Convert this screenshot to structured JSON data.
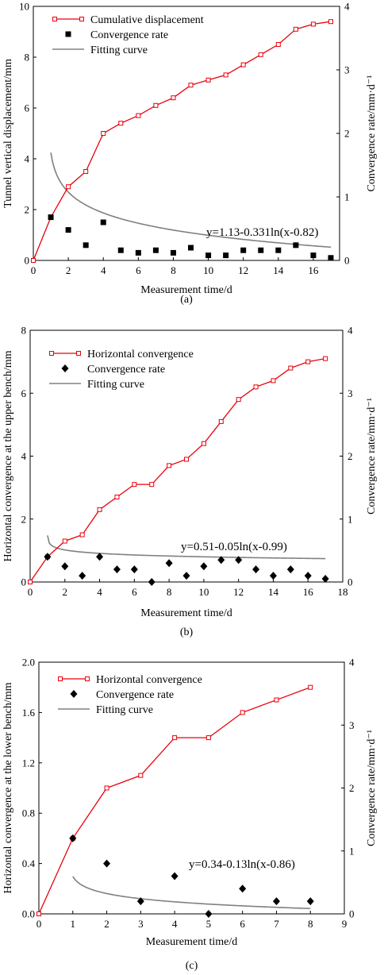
{
  "chart_data": [
    {
      "panel_label": "(a)",
      "type": "line",
      "xlabel": "Measurement time/d",
      "ylabel_left": "Tunnel vertical displacement/mm",
      "ylabel_right": "Convergence rate/mm·d⁻¹",
      "xlim": [
        0,
        17.5
      ],
      "xticks": [
        0,
        2,
        4,
        6,
        8,
        10,
        12,
        14,
        16
      ],
      "ylim_left": [
        0,
        10
      ],
      "yticks_left": [
        0,
        2,
        4,
        6,
        8,
        10
      ],
      "ylim_right": [
        0,
        4
      ],
      "yticks_right": [
        0,
        1,
        2,
        3,
        4
      ],
      "equation": "y=1.13-0.331ln(x-0.82)",
      "fit": {
        "a": 1.13,
        "b": 0.331,
        "c": 0.82,
        "x_start": 1.0,
        "x_end": 17
      },
      "legend_position": "top-left",
      "series": [
        {
          "name": "Cumulative displacement",
          "kind": "line-open-square",
          "color": "#e8000b",
          "axis": "left",
          "x": [
            0,
            1,
            2,
            3,
            4,
            5,
            6,
            7,
            8,
            9,
            10,
            11,
            12,
            13,
            14,
            15,
            16,
            17
          ],
          "y": [
            0,
            1.7,
            2.9,
            3.5,
            5.0,
            5.4,
            5.7,
            6.1,
            6.4,
            6.9,
            7.1,
            7.3,
            7.7,
            8.1,
            8.5,
            9.1,
            9.3,
            9.4
          ]
        },
        {
          "name": "Convergence rate",
          "kind": "scatter-square",
          "color": "#000000",
          "axis": "right",
          "x": [
            1,
            2,
            3,
            4,
            5,
            6,
            7,
            8,
            9,
            10,
            11,
            12,
            13,
            14,
            15,
            16,
            17
          ],
          "y": [
            0.68,
            0.48,
            0.24,
            0.6,
            0.16,
            0.12,
            0.16,
            0.12,
            0.2,
            0.08,
            0.08,
            0.16,
            0.16,
            0.16,
            0.24,
            0.08,
            0.04
          ]
        },
        {
          "name": "Fitting curve",
          "kind": "fit-line",
          "color": "#808080",
          "axis": "right"
        }
      ]
    },
    {
      "panel_label": "(b)",
      "type": "line",
      "xlabel": "Measurement time/d",
      "ylabel_left": "Horizontal convergence at the upper bench/mm",
      "ylabel_right": "Convergence rate/mm·d⁻¹",
      "xlim": [
        0,
        18
      ],
      "xticks": [
        0,
        2,
        4,
        6,
        8,
        10,
        12,
        14,
        16,
        18
      ],
      "ylim_left": [
        0,
        8
      ],
      "yticks_left": [
        0,
        2,
        4,
        6,
        8
      ],
      "ylim_right": [
        0,
        4
      ],
      "yticks_right": [
        0,
        1,
        2,
        3,
        4
      ],
      "equation": "y=0.51-0.05ln(x-0.99)",
      "fit": {
        "a": 0.51,
        "b": 0.05,
        "c": 0.99,
        "x_start": 1.0,
        "x_end": 17
      },
      "legend_position": "top-left",
      "series": [
        {
          "name": "Horizontal convergence",
          "kind": "line-open-square",
          "color": "#e8000b",
          "axis": "left",
          "x": [
            0,
            1,
            2,
            3,
            4,
            5,
            6,
            7,
            8,
            9,
            10,
            11,
            12,
            13,
            14,
            15,
            16,
            17
          ],
          "y": [
            0,
            0.8,
            1.3,
            1.5,
            2.3,
            2.7,
            3.1,
            3.1,
            3.7,
            3.9,
            4.4,
            5.1,
            5.8,
            6.2,
            6.4,
            6.8,
            7.0,
            7.1
          ]
        },
        {
          "name": "Convergence rate",
          "kind": "scatter-diamond",
          "color": "#000000",
          "axis": "right",
          "x": [
            1,
            2,
            3,
            4,
            5,
            6,
            7,
            8,
            9,
            10,
            11,
            12,
            13,
            14,
            15,
            16,
            17
          ],
          "y": [
            0.4,
            0.25,
            0.1,
            0.4,
            0.2,
            0.2,
            0.0,
            0.3,
            0.1,
            0.25,
            0.35,
            0.35,
            0.2,
            0.1,
            0.2,
            0.1,
            0.05
          ]
        },
        {
          "name": "Fitting curve",
          "kind": "fit-line",
          "color": "#808080",
          "axis": "right"
        }
      ]
    },
    {
      "panel_label": "(c)",
      "type": "line",
      "xlabel": "Measurement time/d",
      "ylabel_left": "Horizontal convergence at the lower bench/mm",
      "ylabel_right": "Convergence rate/mm·d⁻¹",
      "xlim": [
        0,
        9
      ],
      "xticks": [
        0,
        1,
        2,
        3,
        4,
        5,
        6,
        7,
        8,
        9
      ],
      "ylim_left": [
        0,
        2.0
      ],
      "yticks_left": [
        "0.0",
        "0.4",
        "0.8",
        "1.2",
        "1.6",
        "2.0"
      ],
      "ylim_right": [
        0,
        4
      ],
      "yticks_right": [
        0,
        1,
        2,
        3,
        4
      ],
      "equation": "y=0.34-0.13ln(x-0.86)",
      "fit": {
        "a": 0.34,
        "b": 0.13,
        "c": 0.86,
        "x_start": 1.0,
        "x_end": 8
      },
      "legend_position": "top-left",
      "series": [
        {
          "name": "Horizontal convergence",
          "kind": "line-open-square",
          "color": "#e8000b",
          "axis": "left",
          "x": [
            0,
            1,
            2,
            3,
            4,
            5,
            6,
            7,
            8
          ],
          "y": [
            0,
            0.6,
            1.0,
            1.1,
            1.4,
            1.4,
            1.6,
            1.7,
            1.8
          ]
        },
        {
          "name": "Convergence rate",
          "kind": "scatter-diamond",
          "color": "#000000",
          "axis": "right",
          "x": [
            1,
            2,
            3,
            4,
            5,
            6,
            7,
            8
          ],
          "y": [
            1.2,
            0.8,
            0.2,
            0.6,
            0.0,
            0.4,
            0.2,
            0.2
          ]
        },
        {
          "name": "Fitting curve",
          "kind": "fit-line",
          "color": "#808080",
          "axis": "right"
        }
      ]
    }
  ]
}
